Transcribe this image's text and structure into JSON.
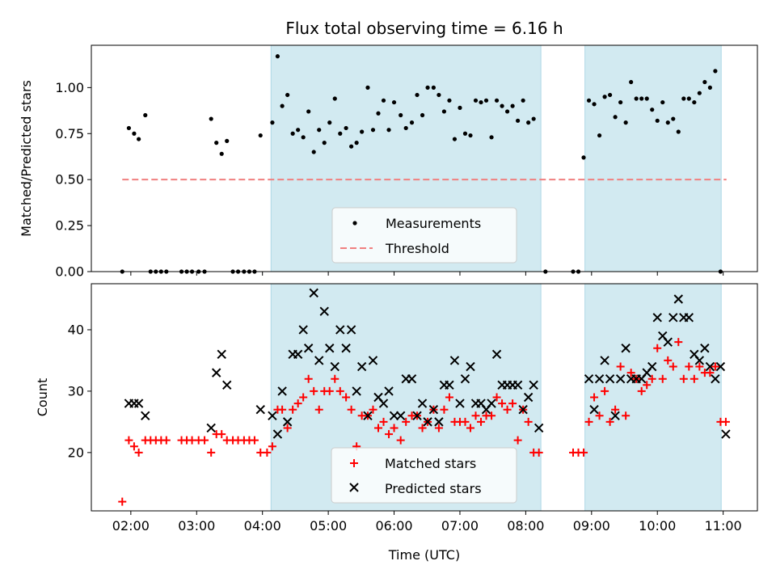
{
  "title": "Flux total observing time = 6.16 h",
  "colors": {
    "observing_span": "#add8e6",
    "threshold": "#f08080",
    "matched": "#ff0000",
    "predicted": "#000000",
    "measurement": "#000000"
  },
  "chart_data": [
    {
      "type": "scatter",
      "panel": "top",
      "ylabel": "Matched/Predicted stars",
      "ylim": [
        0,
        1.23
      ],
      "yticks": [
        0.0,
        0.25,
        0.5,
        0.75,
        1.0
      ],
      "ytick_labels": [
        "0.00",
        "0.25",
        "0.50",
        "0.75",
        "1.00"
      ],
      "xlim_hours": [
        1.4,
        11.52
      ],
      "observing_spans": [
        [
          4.13,
          8.23
        ],
        [
          8.9,
          10.97
        ]
      ],
      "threshold": {
        "value": 0.5,
        "x_start": 1.87,
        "x_end": 11.05
      },
      "legend": {
        "placement": "lower-center",
        "entries": [
          "Measurements",
          "Threshold"
        ]
      },
      "measurements": [
        [
          1.87,
          0.0
        ],
        [
          1.97,
          0.78
        ],
        [
          2.05,
          0.75
        ],
        [
          2.12,
          0.72
        ],
        [
          2.22,
          0.85
        ],
        [
          2.3,
          0.0
        ],
        [
          2.38,
          0.0
        ],
        [
          2.46,
          0.0
        ],
        [
          2.54,
          0.0
        ],
        [
          2.77,
          0.0
        ],
        [
          2.85,
          0.0
        ],
        [
          2.93,
          0.0
        ],
        [
          3.03,
          0.0
        ],
        [
          3.12,
          0.0
        ],
        [
          3.22,
          0.83
        ],
        [
          3.3,
          0.7
        ],
        [
          3.38,
          0.64
        ],
        [
          3.46,
          0.71
        ],
        [
          3.55,
          0.0
        ],
        [
          3.63,
          0.0
        ],
        [
          3.72,
          0.0
        ],
        [
          3.8,
          0.0
        ],
        [
          3.88,
          0.0
        ],
        [
          3.97,
          0.74
        ],
        [
          4.15,
          0.81
        ],
        [
          4.23,
          1.17
        ],
        [
          4.3,
          0.9
        ],
        [
          4.38,
          0.96
        ],
        [
          4.46,
          0.75
        ],
        [
          4.54,
          0.77
        ],
        [
          4.62,
          0.73
        ],
        [
          4.7,
          0.87
        ],
        [
          4.78,
          0.65
        ],
        [
          4.86,
          0.77
        ],
        [
          4.94,
          0.7
        ],
        [
          5.02,
          0.81
        ],
        [
          5.1,
          0.94
        ],
        [
          5.18,
          0.75
        ],
        [
          5.27,
          0.78
        ],
        [
          5.35,
          0.68
        ],
        [
          5.43,
          0.7
        ],
        [
          5.51,
          0.76
        ],
        [
          5.6,
          1.0
        ],
        [
          5.68,
          0.77
        ],
        [
          5.76,
          0.86
        ],
        [
          5.84,
          0.93
        ],
        [
          5.92,
          0.77
        ],
        [
          6.0,
          0.92
        ],
        [
          6.1,
          0.85
        ],
        [
          6.18,
          0.78
        ],
        [
          6.27,
          0.81
        ],
        [
          6.35,
          0.96
        ],
        [
          6.43,
          0.85
        ],
        [
          6.51,
          1.0
        ],
        [
          6.6,
          1.0
        ],
        [
          6.68,
          0.96
        ],
        [
          6.76,
          0.87
        ],
        [
          6.84,
          0.93
        ],
        [
          6.92,
          0.72
        ],
        [
          7.0,
          0.89
        ],
        [
          7.08,
          0.75
        ],
        [
          7.16,
          0.74
        ],
        [
          7.24,
          0.93
        ],
        [
          7.32,
          0.92
        ],
        [
          7.4,
          0.93
        ],
        [
          7.48,
          0.73
        ],
        [
          7.56,
          0.93
        ],
        [
          7.64,
          0.9
        ],
        [
          7.72,
          0.87
        ],
        [
          7.8,
          0.9
        ],
        [
          7.88,
          0.82
        ],
        [
          7.96,
          0.93
        ],
        [
          8.04,
          0.81
        ],
        [
          8.12,
          0.83
        ],
        [
          8.3,
          0.0
        ],
        [
          8.72,
          0.0
        ],
        [
          8.8,
          0.0
        ],
        [
          8.88,
          0.62
        ],
        [
          8.96,
          0.93
        ],
        [
          9.04,
          0.91
        ],
        [
          9.12,
          0.74
        ],
        [
          9.2,
          0.95
        ],
        [
          9.28,
          0.96
        ],
        [
          9.36,
          0.84
        ],
        [
          9.44,
          0.92
        ],
        [
          9.52,
          0.81
        ],
        [
          9.6,
          1.03
        ],
        [
          9.68,
          0.94
        ],
        [
          9.76,
          0.94
        ],
        [
          9.84,
          0.94
        ],
        [
          9.92,
          0.88
        ],
        [
          10.0,
          0.82
        ],
        [
          10.08,
          0.92
        ],
        [
          10.16,
          0.81
        ],
        [
          10.24,
          0.83
        ],
        [
          10.32,
          0.76
        ],
        [
          10.4,
          0.94
        ],
        [
          10.48,
          0.94
        ],
        [
          10.56,
          0.92
        ],
        [
          10.64,
          0.97
        ],
        [
          10.72,
          1.03
        ],
        [
          10.8,
          1.0
        ],
        [
          10.88,
          1.09
        ],
        [
          10.96,
          0.0
        ]
      ]
    },
    {
      "type": "scatter",
      "panel": "bottom",
      "xlabel": "Time (UTC)",
      "ylabel": "Count",
      "ylim": [
        10.5,
        47.5
      ],
      "yticks": [
        20,
        30,
        40
      ],
      "ytick_labels": [
        "20",
        "30",
        "40"
      ],
      "xlim_hours": [
        1.4,
        11.52
      ],
      "xticks": [
        2,
        3,
        4,
        5,
        6,
        7,
        8,
        9,
        10,
        11
      ],
      "xtick_labels": [
        "02:00",
        "03:00",
        "04:00",
        "05:00",
        "06:00",
        "07:00",
        "08:00",
        "09:00",
        "10:00",
        "11:00"
      ],
      "observing_spans": [
        [
          4.13,
          8.23
        ],
        [
          8.9,
          10.97
        ]
      ],
      "legend": {
        "placement": "lower-center",
        "entries": [
          "Matched stars",
          "Predicted stars"
        ]
      },
      "matched": [
        [
          1.87,
          12
        ],
        [
          1.97,
          22
        ],
        [
          2.05,
          21
        ],
        [
          2.12,
          20
        ],
        [
          2.22,
          22
        ],
        [
          2.3,
          22
        ],
        [
          2.38,
          22
        ],
        [
          2.46,
          22
        ],
        [
          2.54,
          22
        ],
        [
          2.77,
          22
        ],
        [
          2.85,
          22
        ],
        [
          2.93,
          22
        ],
        [
          3.03,
          22
        ],
        [
          3.12,
          22
        ],
        [
          3.22,
          20
        ],
        [
          3.3,
          23
        ],
        [
          3.38,
          23
        ],
        [
          3.46,
          22
        ],
        [
          3.55,
          22
        ],
        [
          3.63,
          22
        ],
        [
          3.72,
          22
        ],
        [
          3.8,
          22
        ],
        [
          3.88,
          22
        ],
        [
          3.97,
          20
        ],
        [
          4.07,
          20
        ],
        [
          4.15,
          21
        ],
        [
          4.23,
          27
        ],
        [
          4.3,
          27
        ],
        [
          4.38,
          24
        ],
        [
          4.46,
          27
        ],
        [
          4.54,
          28
        ],
        [
          4.62,
          29
        ],
        [
          4.7,
          32
        ],
        [
          4.78,
          30
        ],
        [
          4.86,
          27
        ],
        [
          4.94,
          30
        ],
        [
          5.02,
          30
        ],
        [
          5.1,
          32
        ],
        [
          5.18,
          30
        ],
        [
          5.27,
          29
        ],
        [
          5.35,
          27
        ],
        [
          5.43,
          21
        ],
        [
          5.51,
          26
        ],
        [
          5.6,
          26
        ],
        [
          5.68,
          27
        ],
        [
          5.76,
          24
        ],
        [
          5.84,
          25
        ],
        [
          5.92,
          23
        ],
        [
          6.0,
          24
        ],
        [
          6.1,
          22
        ],
        [
          6.18,
          25
        ],
        [
          6.27,
          26
        ],
        [
          6.35,
          26
        ],
        [
          6.43,
          24
        ],
        [
          6.51,
          25
        ],
        [
          6.6,
          27
        ],
        [
          6.68,
          24
        ],
        [
          6.76,
          27
        ],
        [
          6.84,
          29
        ],
        [
          6.92,
          25
        ],
        [
          7.0,
          25
        ],
        [
          7.08,
          25
        ],
        [
          7.16,
          24
        ],
        [
          7.24,
          26
        ],
        [
          7.32,
          25
        ],
        [
          7.4,
          26
        ],
        [
          7.48,
          26
        ],
        [
          7.56,
          29
        ],
        [
          7.64,
          28
        ],
        [
          7.72,
          27
        ],
        [
          7.8,
          28
        ],
        [
          7.88,
          22
        ],
        [
          7.96,
          27
        ],
        [
          8.04,
          25
        ],
        [
          8.12,
          20
        ],
        [
          8.2,
          20
        ],
        [
          8.72,
          20
        ],
        [
          8.8,
          20
        ],
        [
          8.88,
          20
        ],
        [
          8.96,
          25
        ],
        [
          9.04,
          29
        ],
        [
          9.12,
          26
        ],
        [
          9.2,
          30
        ],
        [
          9.28,
          25
        ],
        [
          9.36,
          27
        ],
        [
          9.44,
          34
        ],
        [
          9.52,
          26
        ],
        [
          9.6,
          33
        ],
        [
          9.68,
          32
        ],
        [
          9.76,
          30
        ],
        [
          9.84,
          31
        ],
        [
          9.92,
          32
        ],
        [
          10.0,
          37
        ],
        [
          10.08,
          32
        ],
        [
          10.16,
          35
        ],
        [
          10.24,
          34
        ],
        [
          10.32,
          38
        ],
        [
          10.4,
          32
        ],
        [
          10.48,
          34
        ],
        [
          10.56,
          32
        ],
        [
          10.64,
          34
        ],
        [
          10.72,
          33
        ],
        [
          10.8,
          33
        ],
        [
          10.88,
          34
        ],
        [
          10.96,
          25
        ],
        [
          11.04,
          25
        ]
      ],
      "predicted": [
        [
          1.97,
          28
        ],
        [
          2.05,
          28
        ],
        [
          2.12,
          28
        ],
        [
          2.22,
          26
        ],
        [
          3.22,
          24
        ],
        [
          3.3,
          33
        ],
        [
          3.38,
          36
        ],
        [
          3.46,
          31
        ],
        [
          3.97,
          27
        ],
        [
          4.15,
          26
        ],
        [
          4.23,
          23
        ],
        [
          4.3,
          30
        ],
        [
          4.38,
          25
        ],
        [
          4.46,
          36
        ],
        [
          4.54,
          36
        ],
        [
          4.62,
          40
        ],
        [
          4.7,
          37
        ],
        [
          4.78,
          46
        ],
        [
          4.86,
          35
        ],
        [
          4.94,
          43
        ],
        [
          5.02,
          37
        ],
        [
          5.1,
          34
        ],
        [
          5.18,
          40
        ],
        [
          5.27,
          37
        ],
        [
          5.35,
          40
        ],
        [
          5.43,
          30
        ],
        [
          5.51,
          34
        ],
        [
          5.6,
          26
        ],
        [
          5.68,
          35
        ],
        [
          5.76,
          29
        ],
        [
          5.84,
          28
        ],
        [
          5.92,
          30
        ],
        [
          6.0,
          26
        ],
        [
          6.1,
          26
        ],
        [
          6.18,
          32
        ],
        [
          6.27,
          32
        ],
        [
          6.35,
          26
        ],
        [
          6.43,
          28
        ],
        [
          6.51,
          25
        ],
        [
          6.6,
          27
        ],
        [
          6.68,
          25
        ],
        [
          6.76,
          31
        ],
        [
          6.84,
          31
        ],
        [
          6.92,
          35
        ],
        [
          7.0,
          28
        ],
        [
          7.08,
          32
        ],
        [
          7.16,
          34
        ],
        [
          7.24,
          28
        ],
        [
          7.32,
          28
        ],
        [
          7.4,
          27
        ],
        [
          7.48,
          28
        ],
        [
          7.56,
          36
        ],
        [
          7.64,
          31
        ],
        [
          7.72,
          31
        ],
        [
          7.8,
          31
        ],
        [
          7.88,
          31
        ],
        [
          7.96,
          27
        ],
        [
          8.04,
          29
        ],
        [
          8.12,
          31
        ],
        [
          8.2,
          24
        ],
        [
          8.96,
          32
        ],
        [
          9.04,
          27
        ],
        [
          9.12,
          32
        ],
        [
          9.2,
          35
        ],
        [
          9.28,
          32
        ],
        [
          9.36,
          26
        ],
        [
          9.44,
          32
        ],
        [
          9.52,
          37
        ],
        [
          9.6,
          32
        ],
        [
          9.68,
          32
        ],
        [
          9.76,
          32
        ],
        [
          9.84,
          33
        ],
        [
          9.92,
          34
        ],
        [
          10.0,
          42
        ],
        [
          10.08,
          39
        ],
        [
          10.16,
          38
        ],
        [
          10.24,
          42
        ],
        [
          10.32,
          45
        ],
        [
          10.4,
          42
        ],
        [
          10.48,
          42
        ],
        [
          10.56,
          36
        ],
        [
          10.64,
          35
        ],
        [
          10.72,
          37
        ],
        [
          10.8,
          34
        ],
        [
          10.88,
          32
        ],
        [
          10.96,
          34
        ],
        [
          11.04,
          23
        ]
      ]
    }
  ]
}
